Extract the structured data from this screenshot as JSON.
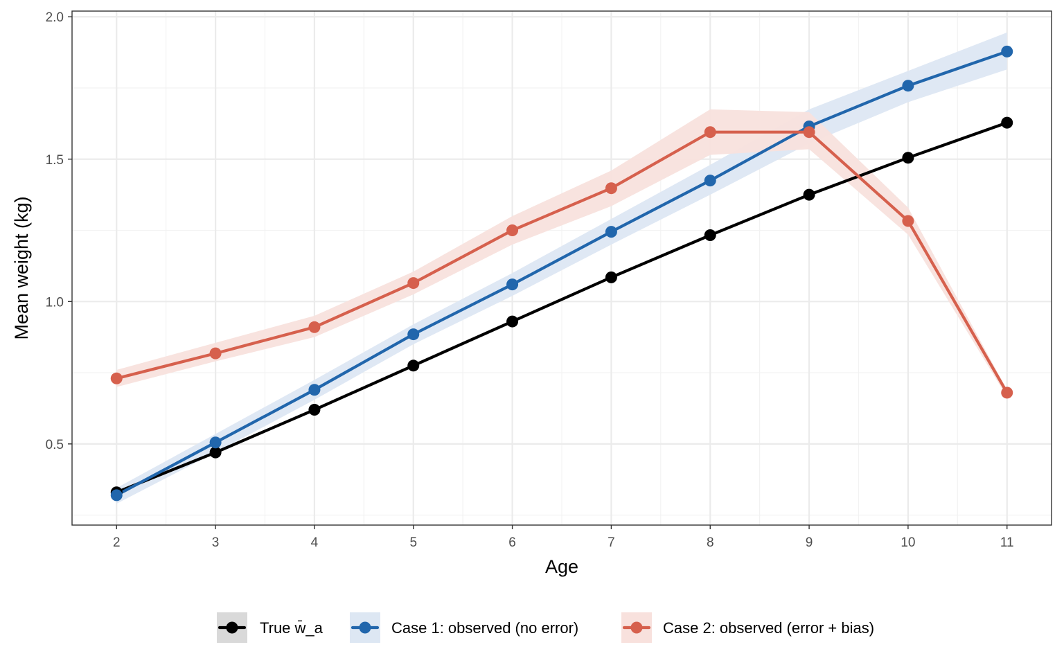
{
  "chart_data": {
    "type": "line",
    "title": "",
    "xlabel": "Age",
    "ylabel": "Mean weight (kg)",
    "x": [
      2,
      3,
      4,
      5,
      6,
      7,
      8,
      9,
      10,
      11
    ],
    "xlim": [
      1.55,
      11.45
    ],
    "ylim": [
      0.215,
      2.02
    ],
    "x_ticks": [
      "2",
      "3",
      "4",
      "5",
      "6",
      "7",
      "8",
      "9",
      "10",
      "11"
    ],
    "y_ticks": [
      "0.5",
      "1.0",
      "1.5",
      "2.0"
    ],
    "y_tick_values": [
      0.5,
      1.0,
      1.5,
      2.0
    ],
    "y_minor_values": [
      0.25,
      0.75,
      1.25,
      1.75
    ],
    "x_minor_values": [
      2.5,
      3.5,
      4.5,
      5.5,
      6.5,
      7.5,
      8.5,
      9.5,
      10.5
    ],
    "grid": true,
    "legend_position": "bottom",
    "series": [
      {
        "name": "True  w̄_a",
        "color": "#000000",
        "band_color": "#d9d9d9",
        "values": [
          0.33,
          0.47,
          0.62,
          0.775,
          0.93,
          1.085,
          1.233,
          1.375,
          1.505,
          1.628
        ]
      },
      {
        "name": "Case 1: observed (no error)",
        "color": "#2166ac",
        "band_color": "#dde7f3",
        "values": [
          0.32,
          0.505,
          0.69,
          0.885,
          1.06,
          1.245,
          1.425,
          1.615,
          1.758,
          1.878
        ],
        "lower": [
          0.29,
          0.47,
          0.655,
          0.85,
          1.02,
          1.2,
          1.375,
          1.555,
          1.7,
          1.815
        ],
        "upper": [
          0.345,
          0.535,
          0.725,
          0.92,
          1.1,
          1.29,
          1.48,
          1.675,
          1.81,
          1.945
        ]
      },
      {
        "name": "Case 2: observed (error + bias)",
        "color": "#d6604d",
        "band_color": "#f8e1dd",
        "values": [
          0.73,
          0.818,
          0.91,
          1.065,
          1.25,
          1.398,
          1.595,
          1.595,
          1.283,
          0.68
        ],
        "lower": [
          0.7,
          0.79,
          0.875,
          1.025,
          1.2,
          1.335,
          1.515,
          1.535,
          1.235,
          0.665
        ],
        "upper": [
          0.76,
          0.855,
          0.95,
          1.105,
          1.3,
          1.46,
          1.675,
          1.665,
          1.33,
          0.69
        ]
      }
    ]
  }
}
